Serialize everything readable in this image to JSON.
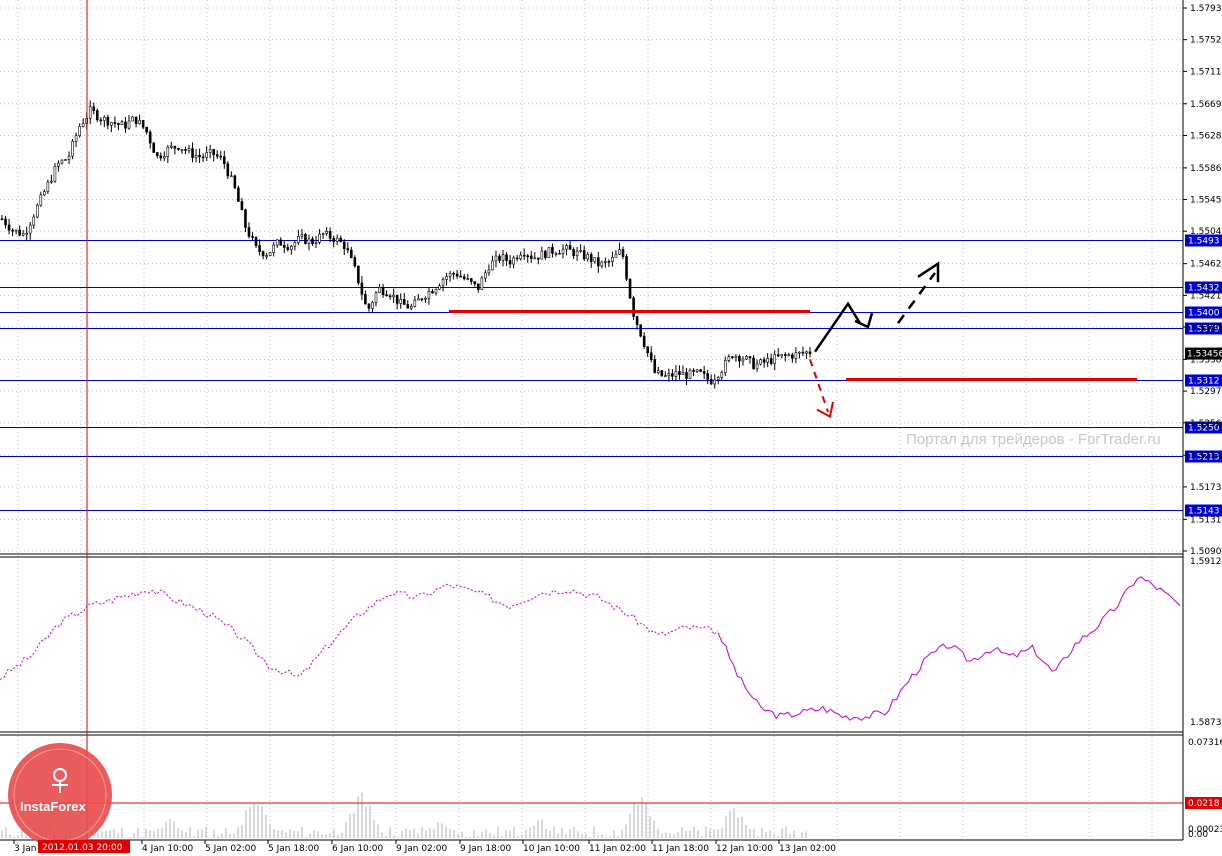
{
  "watermark": "Портал для трейдеров - ForTrader.ru",
  "logo_text": "InstaForex",
  "cursor_time": "2012.01.03 20:00",
  "colors": {
    "level_line": "#0000cc",
    "red_line": "#e00000",
    "osc_line": "#cc00cc",
    "volume": "#b0b0b0",
    "candle": "#000000",
    "logo": "#e84a4a"
  },
  "chart_data": [
    {
      "type": "candlestick",
      "title": "",
      "ylim": [
        1.509,
        1.5793
      ],
      "price_ticks": [
        "1.57930",
        "1.57520",
        "1.57110",
        "1.56690",
        "1.56280",
        "1.55860",
        "1.55450",
        "1.55040",
        "1.54620",
        "1.54210",
        "1.53800",
        "1.53380",
        "1.52970",
        "1.52560",
        "1.52140",
        "1.51730",
        "1.51310",
        "1.50900"
      ],
      "levels": [
        "1.5493",
        "1.5432",
        "1.5400",
        "1.5379",
        "1.5312",
        "1.5250",
        "1.5213",
        "1.5143"
      ],
      "current_price": "1.53456",
      "support_resistance_red": [
        {
          "from": "9 Jan 18:00",
          "to": "12 Jan 18:00",
          "price": 1.54
        },
        {
          "from": "13 Jan 10:00",
          "to": "after 13 Jan 18:00",
          "price": 1.5312
        }
      ],
      "time_labels": [
        "3 Jan",
        "4 Jan 10:00",
        "5 Jan 02:00",
        "5 Jan 18:00",
        "6 Jan 10:00",
        "9 Jan 02:00",
        "9 Jan 18:00",
        "10 Jan 10:00",
        "11 Jan 02:00",
        "11 Jan 18:00",
        "12 Jan 10:00",
        "13 Jan 02:00"
      ],
      "close_path": [
        1.552,
        1.5505,
        1.55,
        1.553,
        1.556,
        1.559,
        1.56,
        1.564,
        1.566,
        1.565,
        1.5645,
        1.564,
        1.565,
        1.5635,
        1.56,
        1.561,
        1.5615,
        1.5605,
        1.56,
        1.5605,
        1.5595,
        1.556,
        1.551,
        1.548,
        1.5475,
        1.549,
        1.5485,
        1.5495,
        1.549,
        1.55,
        1.5495,
        1.5485,
        1.545,
        1.54,
        1.543,
        1.5425,
        1.541,
        1.5405,
        1.542,
        1.543,
        1.5445,
        1.545,
        1.544,
        1.543,
        1.546,
        1.547,
        1.5465,
        1.548,
        1.547,
        1.5475,
        1.548,
        1.548,
        1.5475,
        1.547,
        1.546,
        1.5465,
        1.548,
        1.54,
        1.536,
        1.532,
        1.5315,
        1.532,
        1.5318,
        1.532,
        1.531,
        1.5325,
        1.5345,
        1.534,
        1.533,
        1.5335,
        1.534,
        1.5343,
        1.5345,
        1.5348
      ]
    },
    {
      "type": "line",
      "title": "",
      "ylim": [
        1.58733,
        1.59123
      ],
      "price_ticks": [
        "1.59123",
        "1.58733"
      ],
      "series_dashed_values": [
        1.5885,
        1.589,
        1.5898,
        1.5902,
        1.5904,
        1.5906,
        1.5903,
        1.59,
        1.5895,
        1.5888,
        1.5885,
        1.5893,
        1.59,
        1.5905,
        1.5904,
        1.5907,
        1.5905,
        1.5902,
        1.5905,
        1.5906,
        1.5904,
        1.59,
        1.5895,
        1.5897,
        1.5896
      ],
      "series_solid_values": [
        1.5896,
        1.5885,
        1.5878,
        1.5876,
        1.5877,
        1.5878,
        1.5876,
        1.5876,
        1.5877,
        1.5884,
        1.589,
        1.5893,
        1.5889,
        1.5892,
        1.589,
        1.5892,
        1.5886,
        1.5893,
        1.5897,
        1.5902,
        1.5909,
        1.5906,
        1.5902
      ]
    },
    {
      "type": "bar",
      "title": "",
      "price_ticks": [
        "0.07316",
        "0.00023"
      ],
      "level": "0.0218",
      "bottom_label": "0.00"
    }
  ]
}
